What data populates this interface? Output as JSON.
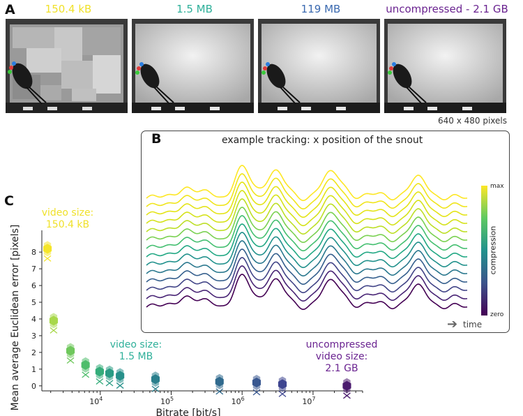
{
  "panel_a": {
    "letter": "A",
    "videos": [
      {
        "label": "150.4 kB",
        "color": "#f0e12a"
      },
      {
        "label": "1.5 MB",
        "color": "#2fb09a"
      },
      {
        "label": "119 MB",
        "color": "#3b6ab0"
      },
      {
        "label": "uncompressed - 2.1 GB",
        "color": "#6a2390"
      }
    ],
    "resolution_label": "640 x 480 pixels"
  },
  "panel_b": {
    "letter": "B",
    "title": "example tracking: x position of the snout",
    "colorbar": {
      "max_label": "max",
      "min_label": "zero",
      "axis_label": "compression"
    },
    "time_label": "time",
    "trace_count": 14
  },
  "panel_c": {
    "letter": "C",
    "annotations": [
      {
        "line1": "video size:",
        "line2": "150.4 kB",
        "color": "#f0e12a"
      },
      {
        "line1": "video size:",
        "line2": "1.5 MB",
        "color": "#2fb09a"
      },
      {
        "line1": "uncompressed",
        "line2": "video size:",
        "line3": "2.1 GB",
        "color": "#6a2390"
      }
    ]
  },
  "chart_data": {
    "type": "scatter",
    "xlabel": "Bitrate [bit/s]",
    "ylabel": "Mean average Euclidean error [pixels]",
    "xscale": "log",
    "xlim": [
      1500,
      50000000
    ],
    "ylim": [
      -0.3,
      9.3
    ],
    "x_ticks": [
      {
        "value": 10000,
        "base": "10",
        "exp": "4"
      },
      {
        "value": 100000,
        "base": "10",
        "exp": "5"
      },
      {
        "value": 1000000,
        "base": "10",
        "exp": "6"
      },
      {
        "value": 10000000,
        "base": "10",
        "exp": "7"
      }
    ],
    "y_ticks": [
      0,
      1,
      2,
      3,
      4,
      5,
      6,
      7,
      8
    ],
    "points": [
      {
        "x": 1800,
        "y": 8.2,
        "color": "#f5e52a"
      },
      {
        "x": 2200,
        "y": 3.9,
        "color": "#a8d84a"
      },
      {
        "x": 3800,
        "y": 2.1,
        "color": "#6fc85c"
      },
      {
        "x": 6200,
        "y": 1.25,
        "color": "#4ebd6c"
      },
      {
        "x": 9800,
        "y": 0.85,
        "color": "#34ad7a"
      },
      {
        "x": 13500,
        "y": 0.75,
        "color": "#2a9c84"
      },
      {
        "x": 19000,
        "y": 0.6,
        "color": "#27908a"
      },
      {
        "x": 60000,
        "y": 0.4,
        "color": "#2a7f8c"
      },
      {
        "x": 480000,
        "y": 0.25,
        "color": "#306a8e"
      },
      {
        "x": 1600000,
        "y": 0.2,
        "color": "#385790"
      },
      {
        "x": 3700000,
        "y": 0.1,
        "color": "#3e4590"
      },
      {
        "x": 30000000,
        "y": 0.0,
        "color": "#4a1a6e"
      }
    ]
  }
}
